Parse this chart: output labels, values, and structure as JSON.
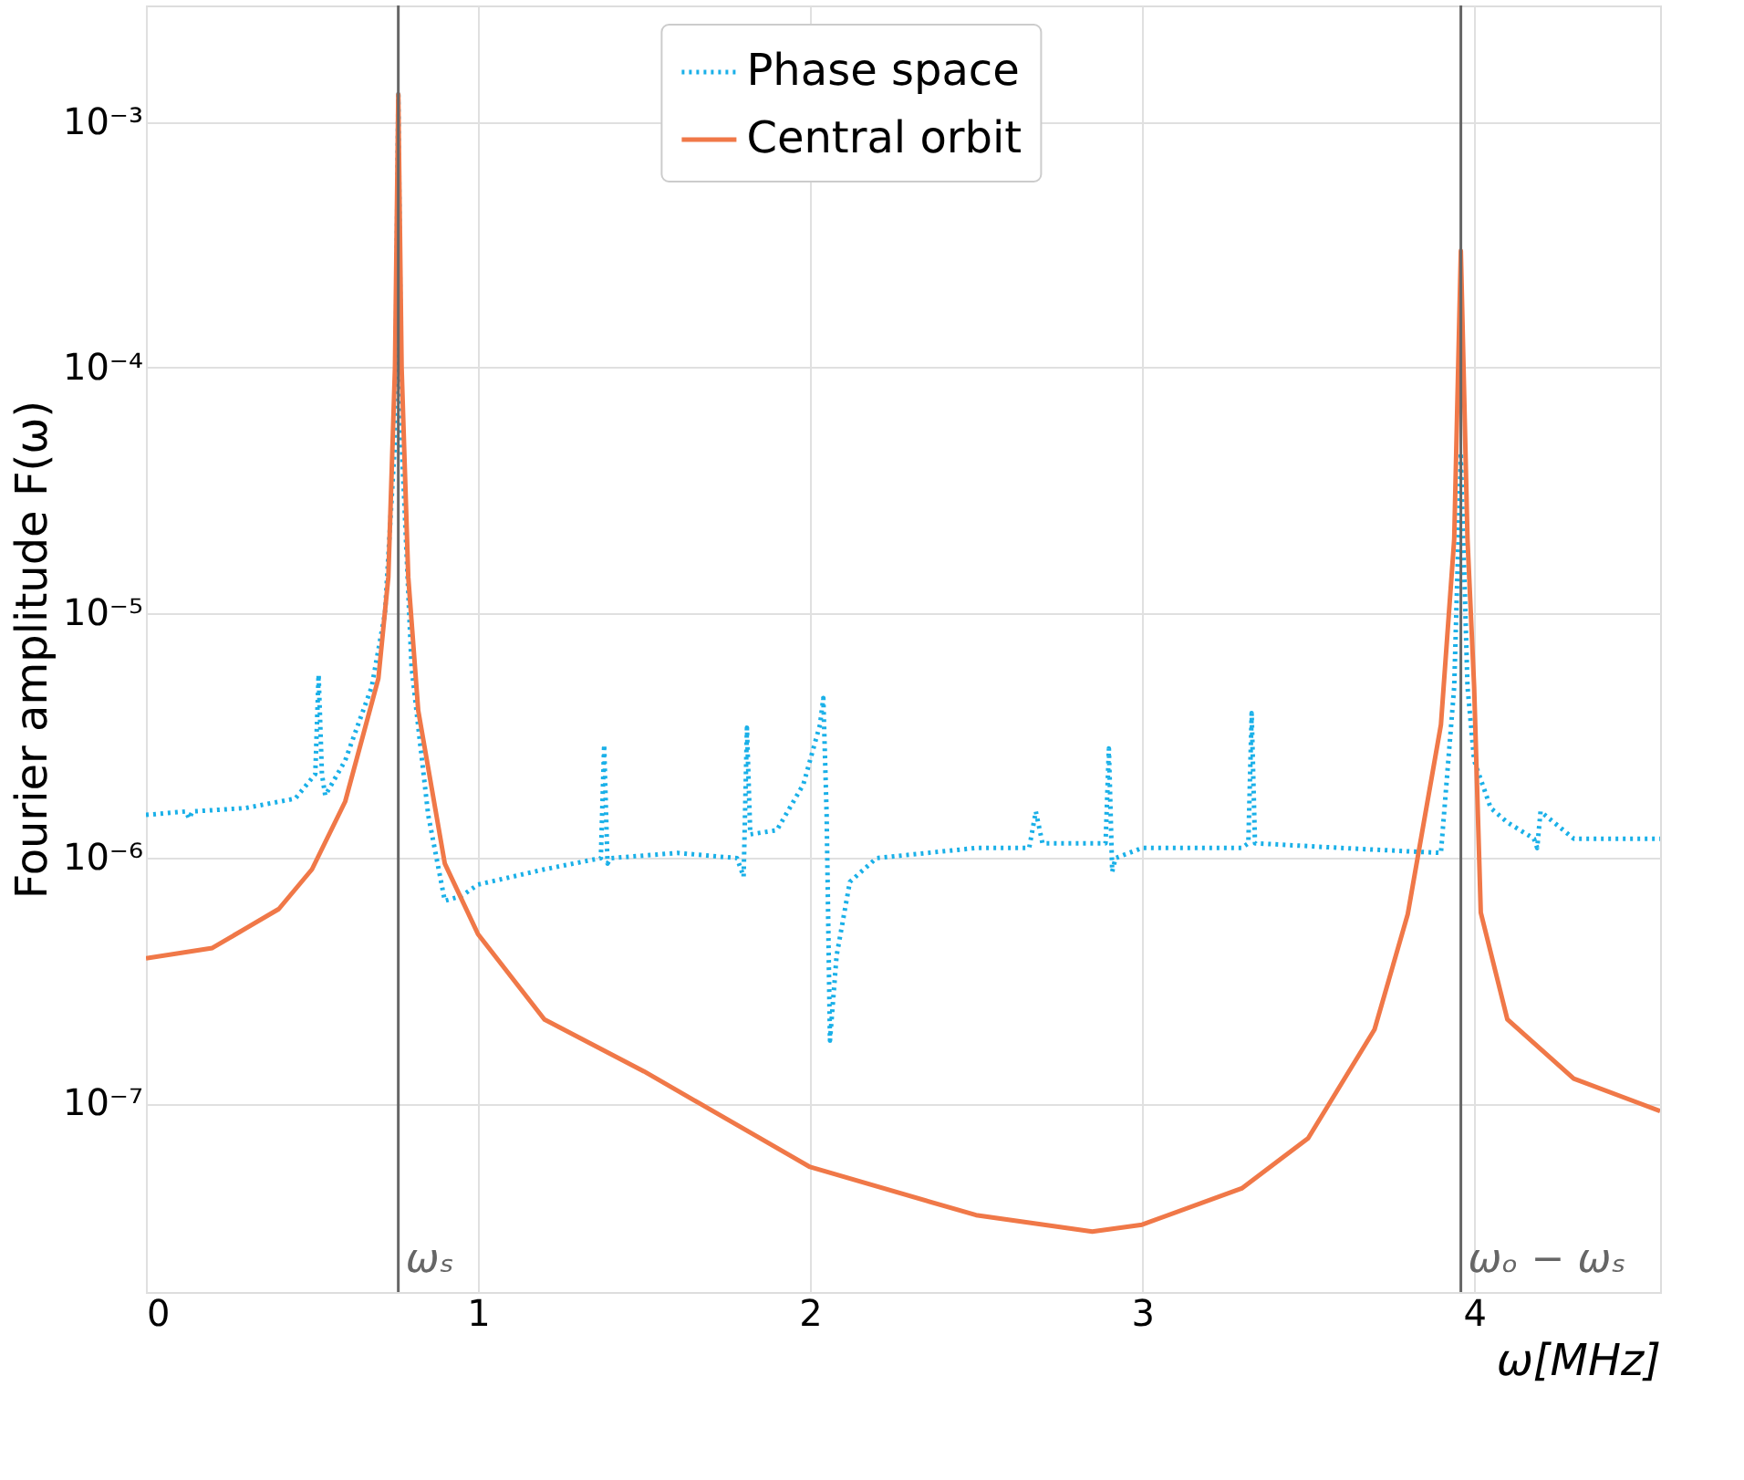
{
  "chart_data": {
    "type": "line",
    "xlabel": "ω[MHz]",
    "ylabel": "Fourier amplitude F(ω)",
    "log": "y",
    "xlim": [
      0,
      4.56
    ],
    "xticks": [
      0,
      1,
      2,
      3,
      4
    ],
    "ylim": [
      1.7e-08,
      0.003
    ],
    "yticks": [
      {
        "value": 1e-07,
        "label": "10⁻⁷"
      },
      {
        "value": 1e-06,
        "label": "10⁻⁶"
      },
      {
        "value": 1e-05,
        "label": "10⁻⁵"
      },
      {
        "value": 0.0001,
        "label": "10⁻⁴"
      },
      {
        "value": 0.001,
        "label": "10⁻³"
      }
    ],
    "grid": true,
    "legend": "top",
    "marker": "none",
    "series": [
      {
        "name": "Phase space",
        "color": "#1ab0e8",
        "line_style": "dotted",
        "x": [
          0,
          0.12,
          0.13,
          0.14,
          0.3,
          0.45,
          0.51,
          0.52,
          0.53,
          0.54,
          0.6,
          0.68,
          0.72,
          0.75,
          0.76,
          0.77,
          0.8,
          0.85,
          0.9,
          0.95,
          1.0,
          1.2,
          1.37,
          1.38,
          1.39,
          1.4,
          1.6,
          1.78,
          1.8,
          1.81,
          1.82,
          1.9,
          1.98,
          2.03,
          2.04,
          2.05,
          2.06,
          2.08,
          2.12,
          2.2,
          2.5,
          2.66,
          2.68,
          2.7,
          2.85,
          2.89,
          2.9,
          2.91,
          2.92,
          3.0,
          3.3,
          3.32,
          3.33,
          3.34,
          3.6,
          3.9,
          3.94,
          3.96,
          3.98,
          4.0,
          4.05,
          4.1,
          4.18,
          4.19,
          4.2,
          4.3,
          4.56
        ],
        "values": [
          1.5e-06,
          1.55e-06,
          1.45e-06,
          1.55e-06,
          1.6e-06,
          1.75e-06,
          2.2e-06,
          5.6e-06,
          2.2e-06,
          1.8e-06,
          2.5e-06,
          5e-06,
          1e-05,
          5e-05,
          0.0013,
          5e-05,
          6e-06,
          1.5e-06,
          6.7e-07,
          7e-07,
          7.8e-07,
          9e-07,
          1e-06,
          2.9e-06,
          9.5e-07,
          1e-06,
          1.05e-06,
          1e-06,
          8.4e-07,
          3.4e-06,
          1.25e-06,
          1.3e-06,
          2e-06,
          3.5e-06,
          4.5e-06,
          1.5e-06,
          1.8e-07,
          4e-07,
          8e-07,
          1e-06,
          1.1e-06,
          1.1e-06,
          1.55e-06,
          1.15e-06,
          1.15e-06,
          1.15e-06,
          2.8e-06,
          8.8e-07,
          1e-06,
          1.1e-06,
          1.1e-06,
          1.15e-06,
          3.9e-06,
          1.15e-06,
          1.1e-06,
          1.05e-06,
          5e-06,
          4.5e-05,
          5e-06,
          2.5e-06,
          1.6e-06,
          1.4e-06,
          1.2e-06,
          1.1e-06,
          1.55e-06,
          1.2e-06,
          1.2e-06
        ]
      },
      {
        "name": "Central orbit",
        "color": "#f07848",
        "line_style": "solid",
        "x": [
          0,
          0.2,
          0.4,
          0.5,
          0.6,
          0.7,
          0.73,
          0.75,
          0.76,
          0.77,
          0.79,
          0.82,
          0.9,
          1.0,
          1.2,
          1.5,
          2.0,
          2.5,
          2.85,
          3.0,
          3.3,
          3.5,
          3.7,
          3.8,
          3.9,
          3.94,
          3.96,
          3.98,
          4.0,
          4.02,
          4.1,
          4.3,
          4.56
        ],
        "values": [
          3.9e-07,
          4.3e-07,
          6.2e-07,
          9e-07,
          1.7e-06,
          5.4e-06,
          1.4e-05,
          0.0001,
          0.0013,
          0.0001,
          1.4e-05,
          4e-06,
          9.5e-07,
          4.9e-07,
          2.2e-07,
          1.35e-07,
          5.5e-08,
          3.5e-08,
          3e-08,
          3.2e-08,
          4.5e-08,
          7.2e-08,
          2e-07,
          5.9e-07,
          3.5e-06,
          2e-05,
          0.0003,
          2e-05,
          5e-06,
          6e-07,
          2.2e-07,
          1.26e-07,
          9.3e-08
        ]
      }
    ],
    "ref_lines": [
      {
        "axis": "x",
        "value": 0.76,
        "label": "ωₛ",
        "color": "#666666"
      },
      {
        "axis": "x",
        "value": 3.96,
        "label": "ωₒ − ωₛ",
        "color": "#666666"
      }
    ]
  }
}
